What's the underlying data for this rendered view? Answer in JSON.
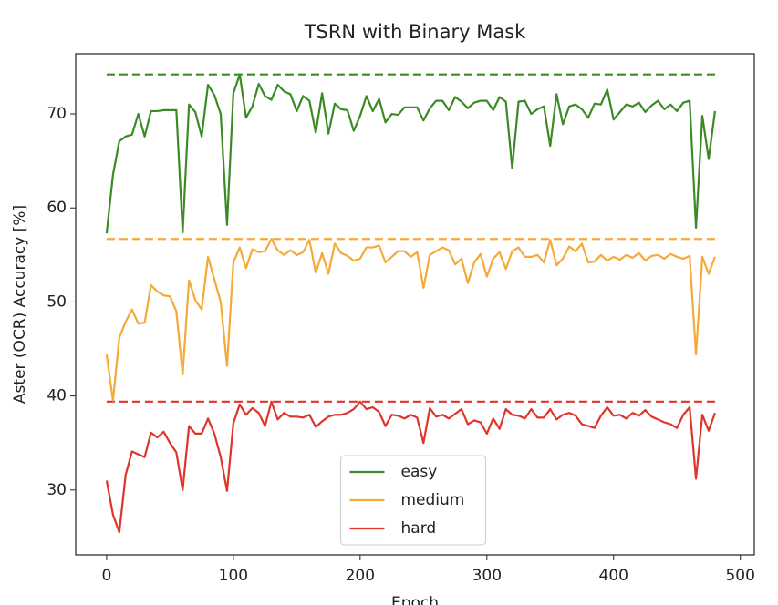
{
  "chart_data": {
    "type": "line",
    "title": "TSRN with Binary Mask",
    "xlabel": "Epoch",
    "ylabel": "Aster (OCR) Accuracy [%]",
    "x": [
      0,
      5,
      10,
      15,
      20,
      25,
      30,
      35,
      40,
      45,
      50,
      55,
      60,
      65,
      70,
      75,
      80,
      85,
      90,
      95,
      100,
      105,
      110,
      115,
      120,
      125,
      130,
      135,
      140,
      145,
      150,
      155,
      160,
      165,
      170,
      175,
      180,
      185,
      190,
      195,
      200,
      205,
      210,
      215,
      220,
      225,
      230,
      235,
      240,
      245,
      250,
      255,
      260,
      265,
      270,
      275,
      280,
      285,
      290,
      295,
      300,
      305,
      310,
      315,
      320,
      325,
      330,
      335,
      340,
      345,
      350,
      355,
      360,
      365,
      370,
      375,
      380,
      385,
      390,
      395,
      400,
      405,
      410,
      415,
      420,
      425,
      430,
      435,
      440,
      445,
      450,
      455,
      460,
      465,
      470,
      475,
      480
    ],
    "series": [
      {
        "name": "easy",
        "color": "#3b8a25",
        "values": [
          57.3,
          63.5,
          67.1,
          67.6,
          67.8,
          70.0,
          67.6,
          70.3,
          70.3,
          70.4,
          70.4,
          70.4,
          57.4,
          71.0,
          70.2,
          67.6,
          73.1,
          72.0,
          70.0,
          58.2,
          72.2,
          74.2,
          69.6,
          70.8,
          73.2,
          71.9,
          71.5,
          73.1,
          72.4,
          72.1,
          70.3,
          71.9,
          71.4,
          68.0,
          72.2,
          67.9,
          71.1,
          70.5,
          70.4,
          68.2,
          69.8,
          71.9,
          70.3,
          71.6,
          69.1,
          70.0,
          69.9,
          70.7,
          70.7,
          70.7,
          69.3,
          70.6,
          71.4,
          71.4,
          70.4,
          71.8,
          71.3,
          70.6,
          71.2,
          71.4,
          71.4,
          70.4,
          71.8,
          71.3,
          64.2,
          71.3,
          71.4,
          70.0,
          70.5,
          70.8,
          66.6,
          72.1,
          68.9,
          70.8,
          71.0,
          70.5,
          69.6,
          71.1,
          71.0,
          72.6,
          69.4,
          70.2,
          71.0,
          70.8,
          71.2,
          70.2,
          70.9,
          71.4,
          70.5,
          71.0,
          70.3,
          71.2,
          71.4,
          57.9,
          69.8,
          65.2,
          70.3
        ]
      },
      {
        "name": "medium",
        "color": "#f4a938",
        "values": [
          44.4,
          39.5,
          46.2,
          47.9,
          49.2,
          47.7,
          47.8,
          51.8,
          51.1,
          50.7,
          50.6,
          49.0,
          42.3,
          52.3,
          50.2,
          49.2,
          54.8,
          52.4,
          50.0,
          43.2,
          54.2,
          55.8,
          53.6,
          55.6,
          55.3,
          55.4,
          56.7,
          55.5,
          55.0,
          55.5,
          55.0,
          55.3,
          56.6,
          53.1,
          55.2,
          53.0,
          56.2,
          55.2,
          54.9,
          54.4,
          54.6,
          55.8,
          55.8,
          56.0,
          54.2,
          54.8,
          55.4,
          55.4,
          54.8,
          55.3,
          51.5,
          55.0,
          55.4,
          55.8,
          55.5,
          54.0,
          54.6,
          52.0,
          54.2,
          55.1,
          52.7,
          54.6,
          55.3,
          53.5,
          55.4,
          55.8,
          54.8,
          54.8,
          55.0,
          54.2,
          56.6,
          53.9,
          54.6,
          55.9,
          55.4,
          56.2,
          54.2,
          54.3,
          55.0,
          54.4,
          54.8,
          54.5,
          55.0,
          54.7,
          55.2,
          54.4,
          54.9,
          55.0,
          54.6,
          55.1,
          54.8,
          54.6,
          54.9,
          44.4,
          54.8,
          53.0,
          54.8
        ]
      },
      {
        "name": "hard",
        "color": "#e0342b",
        "values": [
          31.0,
          27.4,
          25.5,
          31.6,
          34.1,
          33.8,
          33.5,
          36.1,
          35.6,
          36.2,
          35.0,
          34.0,
          30.0,
          36.8,
          36.0,
          36.0,
          37.6,
          36.0,
          33.5,
          29.9,
          37.1,
          39.1,
          38.0,
          38.7,
          38.2,
          36.8,
          39.4,
          37.5,
          38.2,
          37.8,
          37.8,
          37.7,
          38.0,
          36.7,
          37.3,
          37.8,
          38.0,
          38.0,
          38.2,
          38.6,
          39.4,
          38.6,
          38.8,
          38.3,
          36.8,
          38.0,
          37.9,
          37.6,
          38.0,
          37.7,
          35.0,
          38.7,
          37.8,
          38.0,
          37.6,
          38.1,
          38.6,
          37.0,
          37.4,
          37.2,
          36.0,
          37.6,
          36.5,
          38.6,
          38.0,
          37.9,
          37.6,
          38.6,
          37.7,
          37.7,
          38.6,
          37.5,
          38.0,
          38.2,
          37.9,
          37.0,
          36.8,
          36.6,
          37.9,
          38.8,
          37.9,
          38.0,
          37.6,
          38.2,
          37.9,
          38.5,
          37.8,
          37.5,
          37.2,
          37.0,
          36.6,
          38.0,
          38.8,
          31.2,
          38.0,
          36.3,
          38.2
        ]
      }
    ],
    "reference_lines": [
      {
        "value": 74.2,
        "color": "#3b8a25"
      },
      {
        "value": 56.7,
        "color": "#f4a938"
      },
      {
        "value": 39.4,
        "color": "#e0342b"
      }
    ],
    "xlim": [
      -24.4,
      511
    ],
    "ylim": [
      23.1,
      76.4
    ],
    "xticks": [
      0,
      100,
      200,
      300,
      400,
      500
    ],
    "yticks": [
      30,
      40,
      50,
      60,
      70
    ],
    "legend": "lower center"
  }
}
